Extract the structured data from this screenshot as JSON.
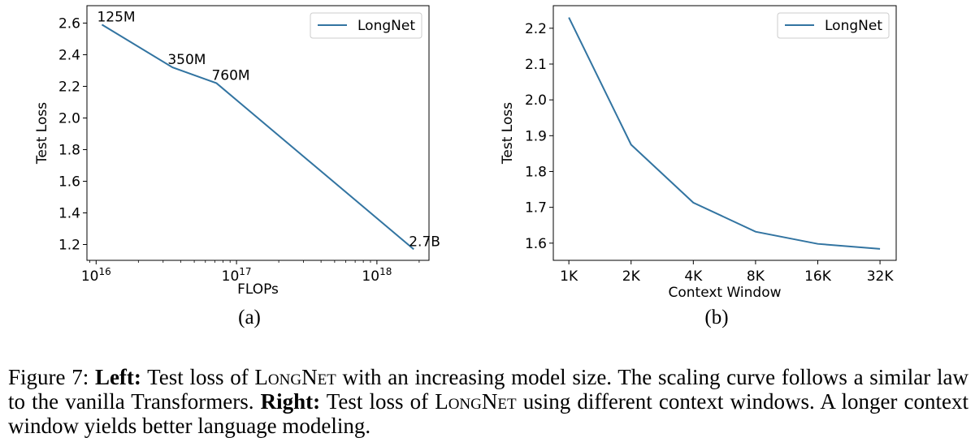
{
  "colors": {
    "line": "#3274a1",
    "axes": "#000000",
    "legend_border": "#cccccc"
  },
  "chart_data": [
    {
      "type": "line",
      "xscale": "log",
      "xlabel": "FLOPs",
      "ylabel": "Test Loss",
      "xlim": [
        8600000000000000.0,
        2.35e+18
      ],
      "ylim": [
        1.1,
        2.71
      ],
      "xticks": [
        1e+16,
        1e+17,
        1e+18
      ],
      "xtick_labels": [
        {
          "base": "10",
          "exp": "16"
        },
        {
          "base": "10",
          "exp": "17"
        },
        {
          "base": "10",
          "exp": "18"
        }
      ],
      "yticks": [
        "1.2",
        "1.4",
        "1.6",
        "1.8",
        "2.0",
        "2.2",
        "2.4",
        "2.6"
      ],
      "grid": false,
      "legend": "top-right",
      "series": [
        {
          "name": "LongNet",
          "x": [
            1.1e+16,
            3.5e+16,
            7.2e+16,
            1.83e+18
          ],
          "y": [
            2.59,
            2.32,
            2.22,
            1.17
          ]
        }
      ],
      "annotations": [
        "125M",
        "350M",
        "760M",
        "2.7B"
      ],
      "sublabel": "(a)"
    },
    {
      "type": "line",
      "xlabel": "Context Window",
      "ylabel": "Test Loss",
      "categories": [
        "1K",
        "2K",
        "4K",
        "8K",
        "16K",
        "32K"
      ],
      "ylim": [
        1.552,
        2.263
      ],
      "yticks": [
        "1.6",
        "1.7",
        "1.8",
        "1.9",
        "2.0",
        "2.1",
        "2.2"
      ],
      "grid": false,
      "legend": "top-right",
      "series": [
        {
          "name": "LongNet",
          "values": [
            2.23,
            1.875,
            1.713,
            1.632,
            1.598,
            1.584
          ]
        }
      ],
      "sublabel": "(b)"
    }
  ],
  "caption": {
    "prefix": "Figure 7: ",
    "left_label": "Left:",
    "part1": " Test loss of ",
    "model": "LongNet",
    "part2": " with an increasing model size. The scaling curve follows a similar law to the vanilla Transformers. ",
    "right_label": "Right:",
    "part3": " Test loss of ",
    "part4": " using different context windows. A longer context window yields better language modeling."
  }
}
